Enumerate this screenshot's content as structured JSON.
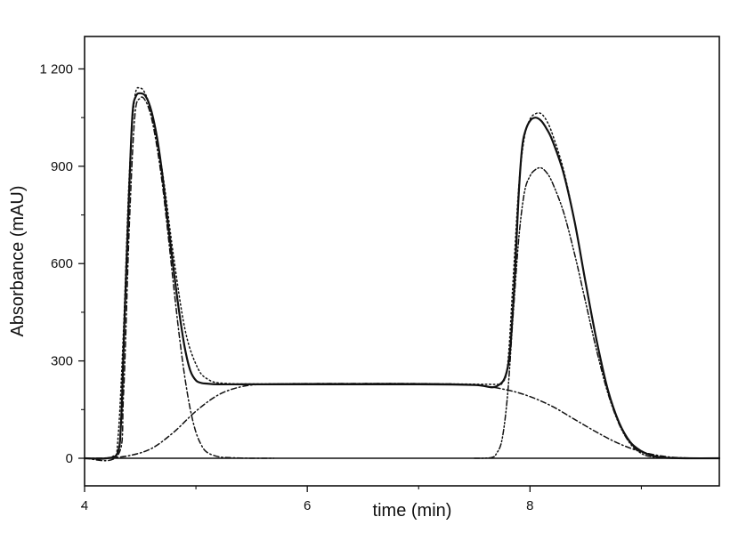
{
  "chart_data": {
    "type": "line",
    "title": "",
    "xlabel": "time (min)",
    "ylabel": "Absorbance (mAU)",
    "xlim": [
      4,
      9.7
    ],
    "ylim": [
      -85,
      1300
    ],
    "x_ticks": [
      {
        "value": 4,
        "label": "4"
      },
      {
        "value": 6,
        "label": "6"
      },
      {
        "value": 8,
        "label": "8"
      }
    ],
    "x_minor_ticks": [
      5,
      7,
      9
    ],
    "y_ticks": [
      {
        "value": 0,
        "label": "0"
      },
      {
        "value": 300,
        "label": "300"
      },
      {
        "value": 600,
        "label": "600"
      },
      {
        "value": 900,
        "label": "900"
      },
      {
        "value": 1200,
        "label": "1 200"
      }
    ],
    "zero_line": true,
    "grid": false,
    "legend": "none",
    "series": [
      {
        "style": "solid",
        "x": [
          4.0,
          4.2,
          4.3,
          4.33,
          4.36,
          4.4,
          4.43,
          4.46,
          4.5,
          4.55,
          4.6,
          4.65,
          4.7,
          4.75,
          4.8,
          4.85,
          4.9,
          4.95,
          5.0,
          5.05,
          5.1,
          5.2,
          5.4,
          6.0,
          7.0,
          7.5,
          7.7,
          7.8,
          7.85,
          7.9,
          7.93,
          7.96,
          8.0,
          8.05,
          8.1,
          8.15,
          8.2,
          8.3,
          8.4,
          8.5,
          8.6,
          8.7,
          8.8,
          8.9,
          9.0,
          9.1,
          9.2,
          9.4,
          9.7
        ],
        "y": [
          0,
          0,
          20,
          130,
          440,
          820,
          1060,
          1115,
          1125,
          1115,
          1070,
          990,
          870,
          720,
          580,
          450,
          340,
          270,
          240,
          232,
          230,
          228,
          228,
          228,
          228,
          226,
          222,
          280,
          480,
          820,
          960,
          1010,
          1040,
          1050,
          1040,
          1015,
          980,
          880,
          730,
          540,
          360,
          210,
          110,
          50,
          22,
          8,
          2,
          0,
          0
        ]
      },
      {
        "style": "dotted",
        "x": [
          4.0,
          4.25,
          4.3,
          4.35,
          4.4,
          4.45,
          4.5,
          4.55,
          4.6,
          4.7,
          4.8,
          4.9,
          5.0,
          5.1,
          5.3,
          6.0,
          7.0,
          7.6,
          7.7,
          7.75,
          7.8,
          7.85,
          7.9,
          7.95,
          8.0,
          8.05,
          8.1,
          8.15,
          8.2,
          8.3,
          8.4,
          8.5,
          8.6,
          8.7,
          8.8,
          8.9,
          9.0,
          9.2,
          9.7
        ],
        "y": [
          0,
          5,
          60,
          400,
          860,
          1110,
          1140,
          1120,
          1060,
          880,
          620,
          400,
          290,
          245,
          230,
          230,
          230,
          228,
          228,
          232,
          290,
          560,
          840,
          990,
          1045,
          1062,
          1062,
          1040,
          1000,
          890,
          730,
          540,
          360,
          210,
          110,
          50,
          20,
          3,
          0
        ]
      },
      {
        "style": "dash-dot",
        "x": [
          4.0,
          4.3,
          4.35,
          4.4,
          4.45,
          4.5,
          4.55,
          4.6,
          4.65,
          4.7,
          4.75,
          4.8,
          4.85,
          4.9,
          4.95,
          5.0,
          5.05,
          5.1,
          5.2,
          5.3,
          5.5,
          5.7
        ],
        "y": [
          0,
          10,
          200,
          700,
          1050,
          1110,
          1100,
          1050,
          960,
          840,
          690,
          530,
          380,
          250,
          150,
          80,
          40,
          18,
          5,
          2,
          0,
          0
        ]
      },
      {
        "style": "dash-dot",
        "x": [
          4.0,
          4.2,
          4.4,
          4.6,
          4.8,
          5.0,
          5.2,
          5.4,
          5.6,
          6.0,
          7.0,
          7.5,
          7.8,
          8.0,
          8.2,
          8.4,
          8.6,
          8.8,
          9.0,
          9.2,
          9.4,
          9.7
        ],
        "y": [
          0,
          1,
          8,
          30,
          80,
          145,
          195,
          220,
          228,
          230,
          230,
          226,
          210,
          190,
          160,
          120,
          80,
          45,
          20,
          6,
          1,
          0
        ]
      },
      {
        "style": "dash-dot-dot",
        "x": [
          7.5,
          7.65,
          7.7,
          7.75,
          7.8,
          7.85,
          7.9,
          7.95,
          8.0,
          8.05,
          8.1,
          8.15,
          8.2,
          8.3,
          8.4,
          8.5,
          8.6,
          8.7,
          8.8,
          8.9,
          9.0,
          9.1,
          9.3
        ],
        "y": [
          0,
          2,
          15,
          60,
          200,
          450,
          680,
          820,
          870,
          890,
          895,
          880,
          850,
          760,
          630,
          480,
          330,
          200,
          105,
          45,
          15,
          4,
          0
        ]
      }
    ]
  }
}
